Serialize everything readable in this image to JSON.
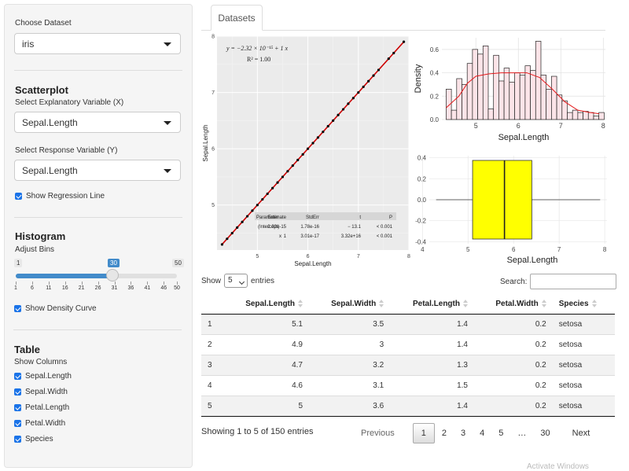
{
  "sidebar": {
    "dataset_label": "Choose Dataset",
    "dataset_value": "iris",
    "scatter_heading": "Scatterplot",
    "x_label": "Select Explanatory Variable (X)",
    "x_value": "Sepal.Length",
    "y_label": "Select Response Variable (Y)",
    "y_value": "Sepal.Length",
    "regression_checkbox": "Show Regression Line",
    "hist_heading": "Histogram",
    "bins_label": "Adjust Bins",
    "bins_min": "1",
    "bins_max": "50",
    "bins_value": "30",
    "bins_value_fraction": 0.59,
    "bins_ticks": [
      "1",
      "6",
      "11",
      "16",
      "21",
      "26",
      "31",
      "36",
      "41",
      "46",
      "50"
    ],
    "density_checkbox": "Show Density Curve",
    "table_heading": "Table",
    "columns_label": "Show Columns",
    "columns": [
      "Sepal.Length",
      "Sepal.Width",
      "Petal.Length",
      "Petal.Width",
      "Species"
    ]
  },
  "tabs": [
    "Datasets"
  ],
  "chart_data": [
    {
      "type": "scatter",
      "x": [
        4.3,
        4.4,
        4.5,
        4.6,
        4.7,
        4.8,
        4.9,
        5.0,
        5.1,
        5.2,
        5.3,
        5.4,
        5.5,
        5.6,
        5.7,
        5.8,
        5.9,
        6.0,
        6.1,
        6.2,
        6.3,
        6.4,
        6.5,
        6.6,
        6.7,
        6.8,
        6.9,
        7.0,
        7.1,
        7.2,
        7.3,
        7.4,
        7.6,
        7.7,
        7.9
      ],
      "y": [
        4.3,
        4.4,
        4.5,
        4.6,
        4.7,
        4.8,
        4.9,
        5.0,
        5.1,
        5.2,
        5.3,
        5.4,
        5.5,
        5.6,
        5.7,
        5.8,
        5.9,
        6.0,
        6.1,
        6.2,
        6.3,
        6.4,
        6.5,
        6.6,
        6.7,
        6.8,
        6.9,
        7.0,
        7.1,
        7.2,
        7.3,
        7.4,
        7.6,
        7.7,
        7.9
      ],
      "xlabel": "Sepal.Length",
      "ylabel": "Sepal.Length",
      "xlim": [
        4.2,
        8.0
      ],
      "ylim": [
        4.2,
        8.0
      ],
      "xticks": [
        "5",
        "6",
        "7",
        "8"
      ],
      "yticks": [
        "5",
        "6",
        "7",
        "8"
      ],
      "equation": "y = −2.32 × 10⁻¹⁵ + 1 x",
      "r2": "R² = 1.00",
      "regression_color": "#cc0000",
      "table_headers": [
        "Parameter",
        "Estimate",
        "StdErr",
        "t",
        "P"
      ],
      "table_rows": [
        [
          "(Intercept)",
          "− 2.32e-15",
          "1.78e-16",
          "− 13.1",
          "< 0.001"
        ],
        [
          "x",
          "1",
          "3.01e-17",
          "3.32e+16",
          "< 0.001"
        ]
      ]
    },
    {
      "type": "bar",
      "subtype": "histogram",
      "bin_start": 4.3,
      "bin_width": 0.124,
      "values": [
        0.26,
        0.08,
        0.35,
        0.3,
        0.48,
        0.6,
        0.56,
        0.63,
        0.09,
        0.55,
        0.33,
        0.44,
        0.32,
        0.4,
        0.38,
        0.46,
        0.42,
        0.67,
        0.38,
        0.26,
        0.37,
        0.21,
        0.16,
        0.06,
        0.08,
        0.06,
        0.07,
        0.06,
        0.03,
        0.06
      ],
      "density_curve": [
        [
          4.3,
          0.1
        ],
        [
          4.6,
          0.2
        ],
        [
          4.8,
          0.31
        ],
        [
          5.0,
          0.37
        ],
        [
          5.3,
          0.39
        ],
        [
          5.6,
          0.4
        ],
        [
          5.9,
          0.4
        ],
        [
          6.2,
          0.4
        ],
        [
          6.5,
          0.36
        ],
        [
          6.8,
          0.26
        ],
        [
          7.1,
          0.15
        ],
        [
          7.4,
          0.08
        ],
        [
          7.7,
          0.06
        ],
        [
          7.9,
          0.05
        ]
      ],
      "xlabel": "Sepal.Length",
      "ylabel": "Density",
      "xlim": [
        4.2,
        8.05
      ],
      "ylim": [
        0,
        0.7
      ],
      "xticks": [
        "5",
        "6",
        "7",
        "8"
      ],
      "yticks": [
        "0.0",
        "0.2",
        "0.4",
        "0.6"
      ],
      "fill_color": "#fce4e8",
      "curve_color": "#e41a1c"
    },
    {
      "type": "box",
      "min": 4.3,
      "q1": 5.1,
      "median": 5.8,
      "q3": 6.4,
      "max": 7.9,
      "xlabel": "Sepal.Length",
      "xlim": [
        4.15,
        8.05
      ],
      "ylim": [
        -0.42,
        0.42
      ],
      "xticks": [
        "4",
        "5",
        "6",
        "7",
        "8"
      ],
      "yticks": [
        "0.4",
        "0.2",
        "0.0",
        "-0.2",
        "-0.4"
      ],
      "fill_color": "#ffff00"
    }
  ],
  "table": {
    "show_label": "Show",
    "entries_label": "entries",
    "page_size": "5",
    "search_label": "Search:",
    "headers": [
      "",
      "Sepal.Length",
      "Sepal.Width",
      "Petal.Length",
      "Petal.Width",
      "Species"
    ],
    "rows": [
      [
        "1",
        "5.1",
        "3.5",
        "1.4",
        "0.2",
        "setosa"
      ],
      [
        "2",
        "4.9",
        "3",
        "1.4",
        "0.2",
        "setosa"
      ],
      [
        "3",
        "4.7",
        "3.2",
        "1.3",
        "0.2",
        "setosa"
      ],
      [
        "4",
        "4.6",
        "3.1",
        "1.5",
        "0.2",
        "setosa"
      ],
      [
        "5",
        "5",
        "3.6",
        "1.4",
        "0.2",
        "setosa"
      ]
    ],
    "info": "Showing 1 to 5 of 150 entries",
    "pager": {
      "previous": "Previous",
      "pages": [
        "1",
        "2",
        "3",
        "4",
        "5",
        "…",
        "30"
      ],
      "current": "1",
      "next": "Next"
    }
  },
  "watermark": "Activate Windows"
}
